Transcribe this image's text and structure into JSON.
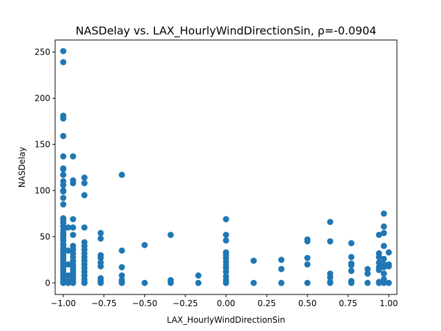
{
  "chart_data": {
    "type": "scatter",
    "title": "NASDelay vs. LAX_HourlyWindDirectionSin, ρ=-0.0904",
    "xlabel": "LAX_HourlyWindDirectionSin",
    "ylabel": "NASDelay",
    "xlim": [
      -1.05,
      1.05
    ],
    "ylim": [
      -12.5,
      263
    ],
    "xticks": [
      -1.0,
      -0.75,
      -0.5,
      -0.25,
      0.0,
      0.25,
      0.5,
      0.75,
      1.0
    ],
    "xtick_labels": [
      "−1.00",
      "−0.75",
      "−0.50",
      "−0.25",
      "0.00",
      "0.25",
      "0.50",
      "0.75",
      "1.00"
    ],
    "yticks": [
      0,
      50,
      100,
      150,
      200,
      250
    ],
    "ytick_labels": [
      "0",
      "50",
      "100",
      "150",
      "200",
      "250"
    ],
    "grid": false,
    "marker_color": "#1f77b4",
    "series": [
      {
        "points": [
          [
            -1.0,
            251
          ],
          [
            -1.0,
            239
          ],
          [
            -1.0,
            181
          ],
          [
            -1.0,
            178
          ],
          [
            -1.0,
            159
          ],
          [
            -1.0,
            137
          ],
          [
            -1.0,
            124
          ],
          [
            -1.0,
            123
          ],
          [
            -1.0,
            117
          ],
          [
            -1.0,
            110
          ],
          [
            -1.0,
            106
          ],
          [
            -1.0,
            100
          ],
          [
            -1.0,
            99
          ],
          [
            -1.0,
            92
          ],
          [
            -1.0,
            85
          ],
          [
            -1.0,
            70
          ],
          [
            -1.0,
            67
          ],
          [
            -1.0,
            65
          ],
          [
            -1.0,
            61
          ],
          [
            -1.0,
            57
          ],
          [
            -1.0,
            54
          ],
          [
            -1.0,
            52
          ],
          [
            -1.0,
            49
          ],
          [
            -1.0,
            46
          ],
          [
            -1.0,
            42
          ],
          [
            -1.0,
            39
          ],
          [
            -1.0,
            36
          ],
          [
            -1.0,
            33
          ],
          [
            -1.0,
            30
          ],
          [
            -1.0,
            27
          ],
          [
            -1.0,
            24
          ],
          [
            -1.0,
            21
          ],
          [
            -1.0,
            18
          ],
          [
            -1.0,
            15
          ],
          [
            -1.0,
            12
          ],
          [
            -1.0,
            9
          ],
          [
            -1.0,
            6
          ],
          [
            -1.0,
            3
          ],
          [
            -1.0,
            1
          ],
          [
            -1.0,
            0
          ],
          [
            -0.97,
            60
          ],
          [
            -0.97,
            35
          ],
          [
            -0.97,
            20
          ],
          [
            -0.97,
            8
          ],
          [
            -0.97,
            2
          ],
          [
            -0.97,
            0
          ],
          [
            -0.94,
            137
          ],
          [
            -0.94,
            111
          ],
          [
            -0.94,
            108
          ],
          [
            -0.94,
            69
          ],
          [
            -0.94,
            60
          ],
          [
            -0.94,
            52
          ],
          [
            -0.94,
            40
          ],
          [
            -0.94,
            36
          ],
          [
            -0.94,
            32
          ],
          [
            -0.94,
            28
          ],
          [
            -0.94,
            24
          ],
          [
            -0.94,
            20
          ],
          [
            -0.94,
            17
          ],
          [
            -0.94,
            14
          ],
          [
            -0.94,
            11
          ],
          [
            -0.94,
            8
          ],
          [
            -0.94,
            5
          ],
          [
            -0.94,
            2
          ],
          [
            -0.94,
            0
          ],
          [
            -0.87,
            114
          ],
          [
            -0.87,
            108
          ],
          [
            -0.87,
            95
          ],
          [
            -0.87,
            60
          ],
          [
            -0.87,
            44
          ],
          [
            -0.87,
            40
          ],
          [
            -0.87,
            36
          ],
          [
            -0.87,
            32
          ],
          [
            -0.87,
            28
          ],
          [
            -0.87,
            24
          ],
          [
            -0.87,
            20
          ],
          [
            -0.87,
            16
          ],
          [
            -0.87,
            12
          ],
          [
            -0.87,
            8
          ],
          [
            -0.87,
            4
          ],
          [
            -0.87,
            1
          ],
          [
            -0.87,
            0
          ],
          [
            -0.77,
            54
          ],
          [
            -0.77,
            48
          ],
          [
            -0.77,
            30
          ],
          [
            -0.77,
            27
          ],
          [
            -0.77,
            22
          ],
          [
            -0.77,
            18
          ],
          [
            -0.77,
            5
          ],
          [
            -0.77,
            2
          ],
          [
            -0.77,
            0
          ],
          [
            -0.64,
            117
          ],
          [
            -0.64,
            35
          ],
          [
            -0.64,
            17
          ],
          [
            -0.64,
            8
          ],
          [
            -0.64,
            3
          ],
          [
            -0.64,
            1
          ],
          [
            -0.64,
            0
          ],
          [
            -0.5,
            41
          ],
          [
            -0.5,
            0
          ],
          [
            -0.34,
            52
          ],
          [
            -0.34,
            3
          ],
          [
            -0.34,
            0
          ],
          [
            -0.17,
            8
          ],
          [
            -0.17,
            0
          ],
          [
            0.0,
            69
          ],
          [
            0.0,
            52
          ],
          [
            0.0,
            46
          ],
          [
            0.0,
            33
          ],
          [
            0.0,
            30
          ],
          [
            0.0,
            27
          ],
          [
            0.0,
            23
          ],
          [
            0.0,
            19
          ],
          [
            0.0,
            16
          ],
          [
            0.0,
            12
          ],
          [
            0.0,
            7
          ],
          [
            0.0,
            3
          ],
          [
            0.0,
            0
          ],
          [
            0.17,
            24
          ],
          [
            0.17,
            0
          ],
          [
            0.34,
            25
          ],
          [
            0.34,
            15
          ],
          [
            0.34,
            0
          ],
          [
            0.5,
            47
          ],
          [
            0.5,
            45
          ],
          [
            0.5,
            27
          ],
          [
            0.5,
            20
          ],
          [
            0.5,
            0
          ],
          [
            0.64,
            66
          ],
          [
            0.64,
            45
          ],
          [
            0.64,
            10
          ],
          [
            0.64,
            6
          ],
          [
            0.64,
            1
          ],
          [
            0.64,
            0
          ],
          [
            0.77,
            43
          ],
          [
            0.77,
            28
          ],
          [
            0.77,
            21
          ],
          [
            0.77,
            19
          ],
          [
            0.77,
            13
          ],
          [
            0.77,
            2
          ],
          [
            0.77,
            0
          ],
          [
            0.87,
            15
          ],
          [
            0.87,
            10
          ],
          [
            0.87,
            0
          ],
          [
            0.94,
            52
          ],
          [
            0.94,
            32
          ],
          [
            0.94,
            28
          ],
          [
            0.94,
            22
          ],
          [
            0.94,
            17
          ],
          [
            0.94,
            14
          ],
          [
            0.94,
            1
          ],
          [
            0.94,
            0
          ],
          [
            0.97,
            75
          ],
          [
            0.97,
            61
          ],
          [
            0.97,
            54
          ],
          [
            0.97,
            40
          ],
          [
            0.97,
            26
          ],
          [
            0.97,
            20
          ],
          [
            0.97,
            17
          ],
          [
            0.97,
            10
          ],
          [
            0.97,
            4
          ],
          [
            0.97,
            0
          ],
          [
            1.0,
            33
          ],
          [
            1.0,
            20
          ],
          [
            1.0,
            18
          ],
          [
            1.0,
            0
          ]
        ]
      }
    ]
  }
}
